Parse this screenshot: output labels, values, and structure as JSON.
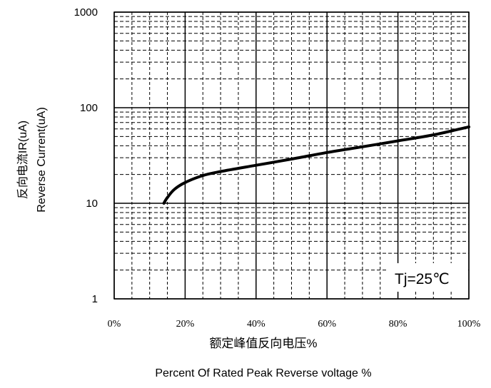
{
  "chart_data": {
    "type": "line",
    "y_scale": "log",
    "ylim": [
      1,
      1000
    ],
    "xlim": [
      0,
      100
    ],
    "y_ticks": [
      1,
      10,
      100,
      1000
    ],
    "y_tick_labels": [
      "1",
      "10",
      "100",
      "1000"
    ],
    "x_ticks": [
      0,
      20,
      40,
      60,
      80,
      100
    ],
    "x_tick_labels": [
      "0%",
      "20%",
      "40%",
      "60%",
      "80%",
      "100%"
    ],
    "ylabel_cn": "反向电流IR(uA)",
    "ylabel_en": "Reverse Current(uA)",
    "xlabel_cn": "额定峰值反向电压%",
    "xlabel_en": "Percent Of Rated Peak Reverse voltage %",
    "annotation": "Tj=25℃",
    "grid": true,
    "series": [
      {
        "color": "#000000",
        "points": [
          [
            14,
            10
          ],
          [
            15,
            11.5
          ],
          [
            17,
            14
          ],
          [
            20,
            16.5
          ],
          [
            25,
            19.5
          ],
          [
            30,
            21.5
          ],
          [
            40,
            25
          ],
          [
            50,
            29
          ],
          [
            60,
            34
          ],
          [
            70,
            39
          ],
          [
            80,
            45
          ],
          [
            90,
            52
          ],
          [
            100,
            63
          ]
        ]
      }
    ]
  }
}
